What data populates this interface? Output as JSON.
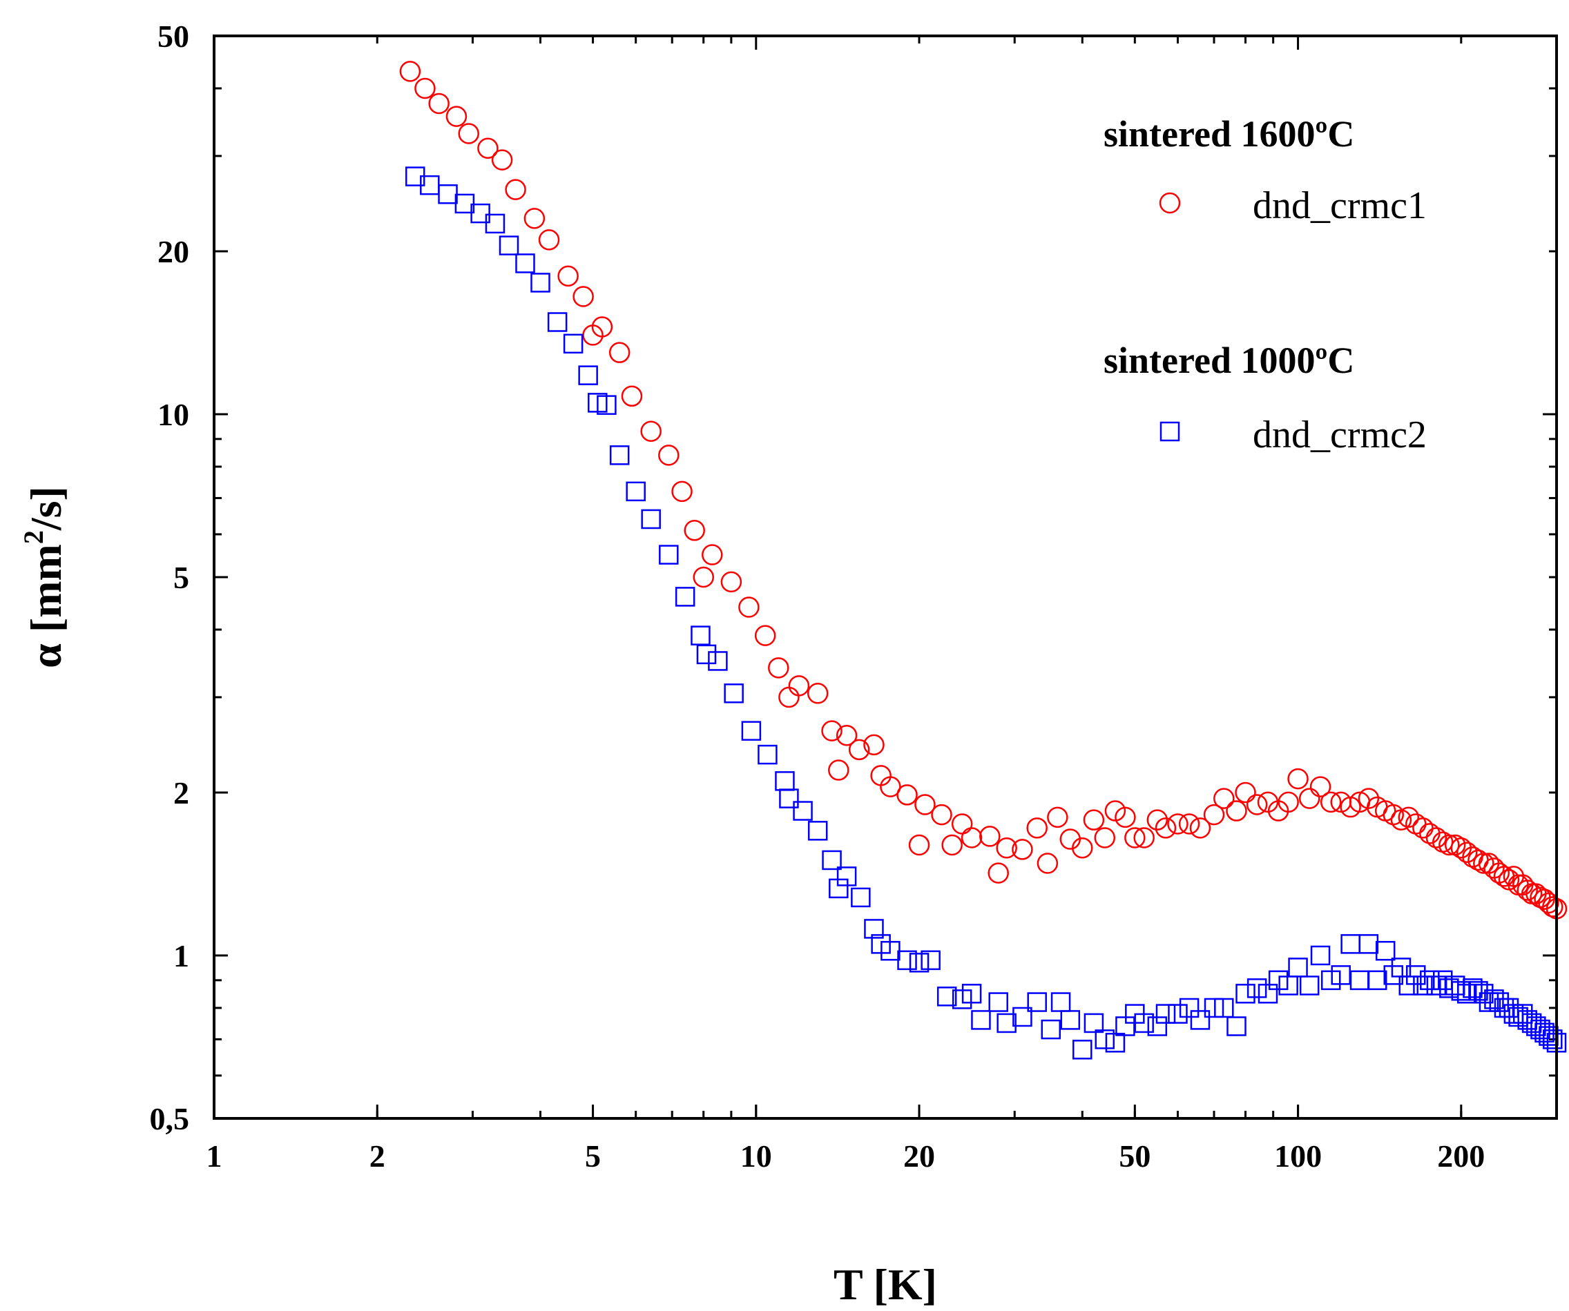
{
  "chart_data": {
    "type": "scatter",
    "title": "",
    "xlabel": "T [K]",
    "ylabel_parts": [
      "α [mm",
      "2",
      "/s]"
    ],
    "xscale": "log",
    "yscale": "log",
    "xlim": [
      1,
      300
    ],
    "ylim": [
      0.5,
      50
    ],
    "x_ticks": [
      1,
      2,
      5,
      10,
      20,
      50,
      100,
      200
    ],
    "x_tick_labels": [
      "1",
      "2",
      "5",
      "10",
      "20",
      "50",
      "100",
      "200"
    ],
    "y_ticks": [
      0.5,
      1,
      2,
      5,
      10,
      20,
      50
    ],
    "y_tick_labels": [
      "0,5",
      "1",
      "2",
      "5",
      "10",
      "20",
      "50"
    ],
    "legend_position": "top-right",
    "series": [
      {
        "name": "dnd_crmc1",
        "group_title": "sintered 1600ºC",
        "marker": "circle",
        "color": "#ff0000",
        "x": [
          2.3,
          2.45,
          2.6,
          2.8,
          2.95,
          3.2,
          3.4,
          3.6,
          3.9,
          4.15,
          4.5,
          4.8,
          5.0,
          5.2,
          5.6,
          5.9,
          6.4,
          6.9,
          7.3,
          7.7,
          8.0,
          8.3,
          9.0,
          9.7,
          10.4,
          11.0,
          11.5,
          12.0,
          13.0,
          13.8,
          14.2,
          14.7,
          15.5,
          16.5,
          17.0,
          17.7,
          19.0,
          20.0,
          20.5,
          22.0,
          23.0,
          24.0,
          25.0,
          27.0,
          28.0,
          29.0,
          31.0,
          33.0,
          34.5,
          36.0,
          38.0,
          40.0,
          42.0,
          44.0,
          46.0,
          48.0,
          50.0,
          52.0,
          55.0,
          57.0,
          60.0,
          63.0,
          66.0,
          70.0,
          73.0,
          77.0,
          80.0,
          84.0,
          88.0,
          92.0,
          96.0,
          100.0,
          105.0,
          110.0,
          115.0,
          120.0,
          125.0,
          130.0,
          135.0,
          140.0,
          145.0,
          150.0,
          155.0,
          160.0,
          165.0,
          170.0,
          175.0,
          180.0,
          185.0,
          190.0,
          195.0,
          200.0,
          205.0,
          210.0,
          215.0,
          220.0,
          225.0,
          230.0,
          235.0,
          240.0,
          245.0,
          250.0,
          255.0,
          260.0,
          265.0,
          270.0,
          275.0,
          280.0,
          285.0,
          290.0,
          295.0,
          300.0
        ],
        "y": [
          43.0,
          40.0,
          37.5,
          35.5,
          33.0,
          31.0,
          29.5,
          26.0,
          23.0,
          21.0,
          18.0,
          16.5,
          14.0,
          14.5,
          13.0,
          10.8,
          9.3,
          8.4,
          7.2,
          6.1,
          5.0,
          5.5,
          4.9,
          4.4,
          3.9,
          3.4,
          3.0,
          3.15,
          3.05,
          2.6,
          2.2,
          2.55,
          2.4,
          2.45,
          2.15,
          2.05,
          1.98,
          1.6,
          1.9,
          1.82,
          1.6,
          1.75,
          1.65,
          1.66,
          1.42,
          1.58,
          1.57,
          1.72,
          1.48,
          1.8,
          1.64,
          1.58,
          1.78,
          1.65,
          1.85,
          1.8,
          1.65,
          1.65,
          1.78,
          1.72,
          1.75,
          1.75,
          1.72,
          1.82,
          1.95,
          1.85,
          2.0,
          1.9,
          1.92,
          1.85,
          1.92,
          2.12,
          1.95,
          2.05,
          1.92,
          1.92,
          1.88,
          1.92,
          1.95,
          1.88,
          1.85,
          1.82,
          1.78,
          1.8,
          1.75,
          1.72,
          1.68,
          1.65,
          1.62,
          1.6,
          1.6,
          1.58,
          1.55,
          1.52,
          1.5,
          1.48,
          1.48,
          1.45,
          1.42,
          1.4,
          1.38,
          1.4,
          1.35,
          1.35,
          1.32,
          1.3,
          1.3,
          1.28,
          1.27,
          1.25,
          1.23,
          1.22
        ]
      },
      {
        "name": "dnd_crmc2",
        "group_title": "sintered 1000ºC",
        "marker": "square",
        "color": "#0000ff",
        "x": [
          2.35,
          2.5,
          2.7,
          2.9,
          3.1,
          3.3,
          3.5,
          3.75,
          4.0,
          4.3,
          4.6,
          4.9,
          5.1,
          5.3,
          5.6,
          6.0,
          6.4,
          6.9,
          7.4,
          7.9,
          8.1,
          8.5,
          9.1,
          9.8,
          10.5,
          11.3,
          11.5,
          12.2,
          13.0,
          13.8,
          14.2,
          14.7,
          15.6,
          16.5,
          17.0,
          17.7,
          19.0,
          20.0,
          21.0,
          22.5,
          24.0,
          25.0,
          26.0,
          28.0,
          29.0,
          31.0,
          33.0,
          35.0,
          36.5,
          38.0,
          40.0,
          42.0,
          44.0,
          46.0,
          48.0,
          50.0,
          52.0,
          55.0,
          57.0,
          60.0,
          63.0,
          66.0,
          70.0,
          73.0,
          77.0,
          80.0,
          84.0,
          88.0,
          92.0,
          96.0,
          100.0,
          105.0,
          110.0,
          115.0,
          120.0,
          125.0,
          130.0,
          135.0,
          140.0,
          145.0,
          150.0,
          155.0,
          160.0,
          165.0,
          170.0,
          175.0,
          180.0,
          185.0,
          190.0,
          195.0,
          200.0,
          205.0,
          210.0,
          215.0,
          220.0,
          225.0,
          230.0,
          235.0,
          240.0,
          245.0,
          250.0,
          255.0,
          260.0,
          265.0,
          270.0,
          275.0,
          280.0,
          285.0,
          290.0,
          295.0,
          300.0
        ],
        "y": [
          27.5,
          26.5,
          25.5,
          24.5,
          23.5,
          22.5,
          20.5,
          19.0,
          17.5,
          14.8,
          13.5,
          11.8,
          10.5,
          10.4,
          8.4,
          7.2,
          6.4,
          5.5,
          4.6,
          3.9,
          3.6,
          3.5,
          3.05,
          2.6,
          2.35,
          2.1,
          1.95,
          1.85,
          1.7,
          1.5,
          1.33,
          1.4,
          1.28,
          1.12,
          1.05,
          1.02,
          0.98,
          0.97,
          0.98,
          0.84,
          0.83,
          0.85,
          0.76,
          0.82,
          0.75,
          0.77,
          0.82,
          0.73,
          0.82,
          0.76,
          0.67,
          0.75,
          0.7,
          0.69,
          0.74,
          0.78,
          0.75,
          0.74,
          0.78,
          0.78,
          0.8,
          0.76,
          0.8,
          0.8,
          0.74,
          0.85,
          0.87,
          0.85,
          0.9,
          0.88,
          0.95,
          0.88,
          1.0,
          0.9,
          0.92,
          1.05,
          0.9,
          1.05,
          0.9,
          1.02,
          0.92,
          0.95,
          0.88,
          0.92,
          0.88,
          0.9,
          0.88,
          0.9,
          0.87,
          0.88,
          0.86,
          0.85,
          0.87,
          0.86,
          0.85,
          0.82,
          0.83,
          0.82,
          0.8,
          0.8,
          0.78,
          0.77,
          0.78,
          0.76,
          0.75,
          0.74,
          0.73,
          0.72,
          0.71,
          0.7,
          0.69
        ]
      }
    ]
  }
}
